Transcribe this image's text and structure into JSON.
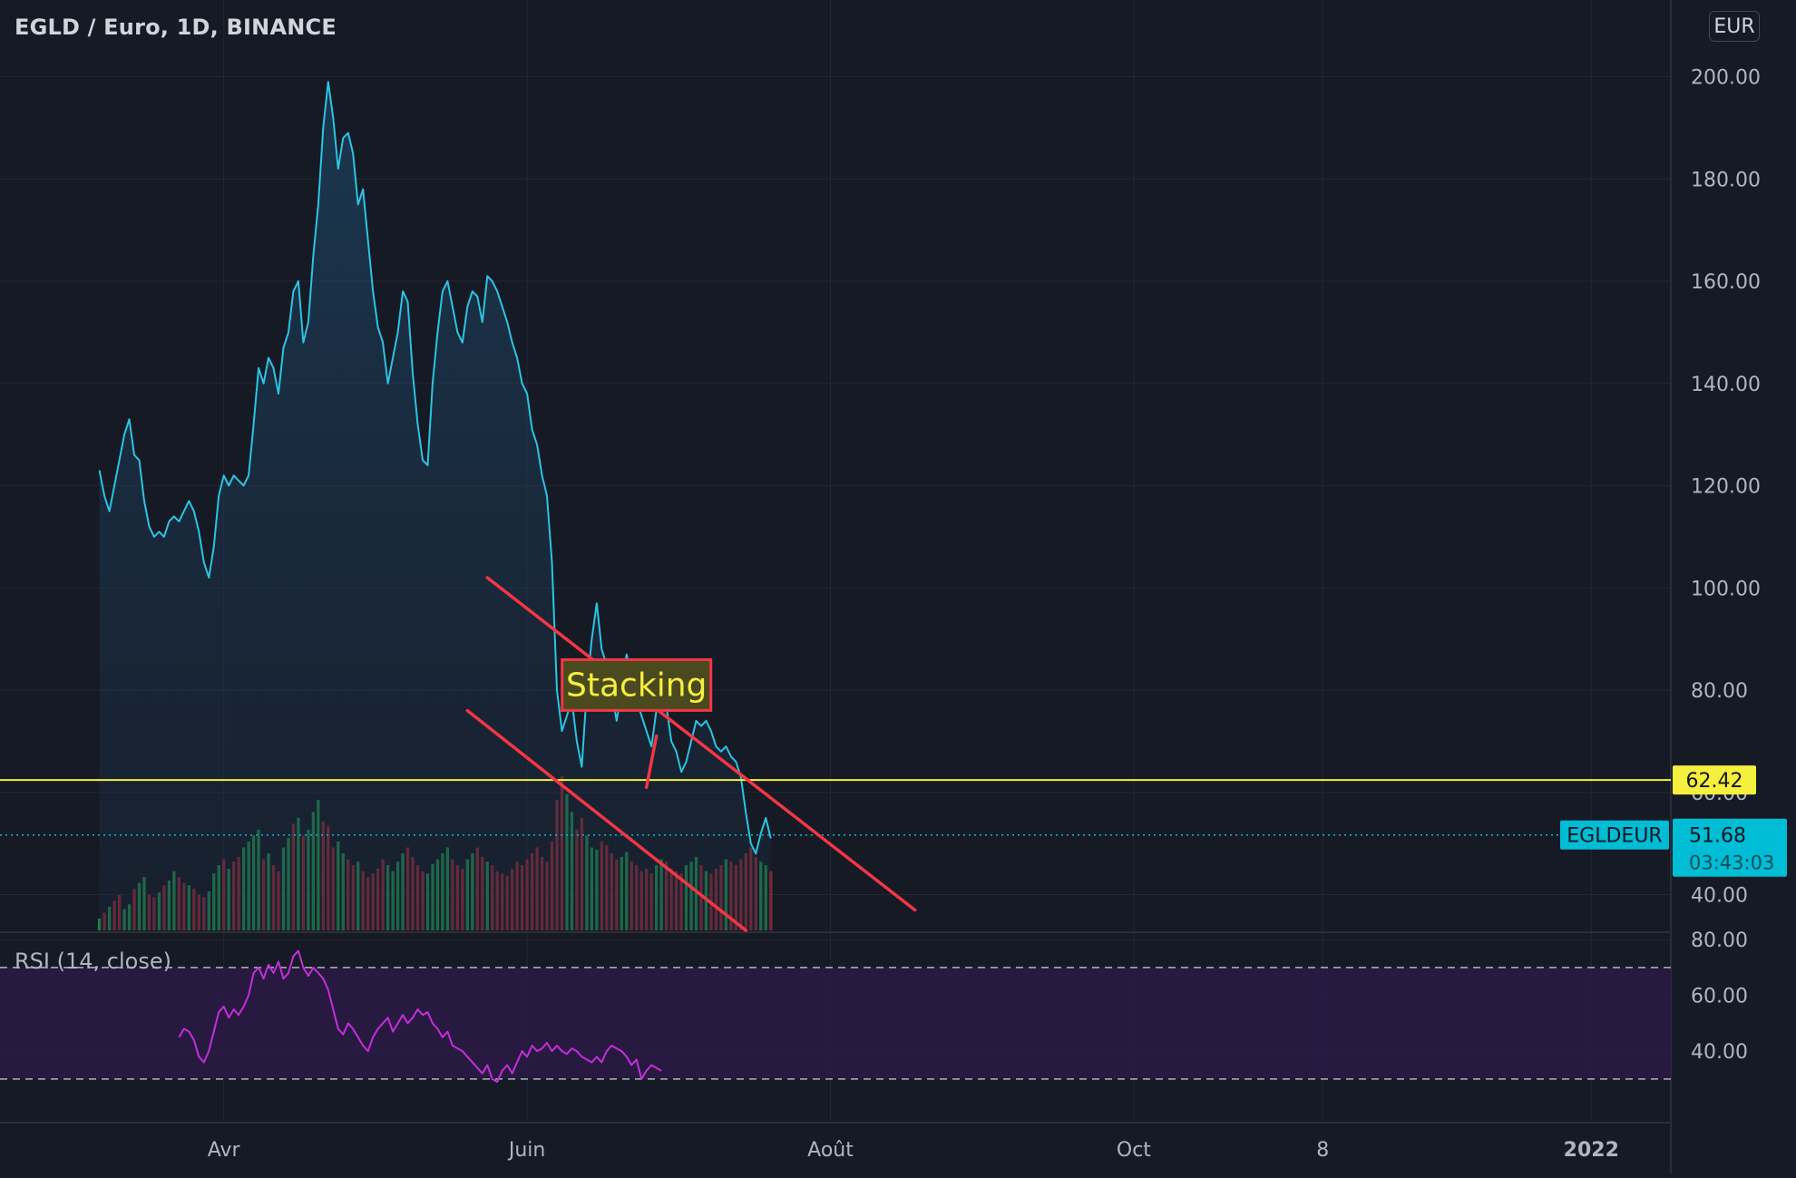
{
  "header": {
    "title": "EGLD / Euro, 1D, BINANCE",
    "currency": "EUR"
  },
  "colors": {
    "background": "#161a25",
    "grid": "#232733",
    "price_line": "#2bc4e2",
    "trendline": "#f23645",
    "support_line": "#f5ef3d",
    "rsi_line": "#c42edb",
    "rsi_band": "#2a1a45",
    "volume_up": "#1f8a4a",
    "volume_down": "#8c2a35",
    "axis_text": "#b2b5be",
    "ticker_bg": "#00bcd4"
  },
  "chart_data": [
    {
      "type": "line",
      "panel": "price",
      "ylim": [
        33,
        215
      ],
      "xlim": [
        "2021-02-15",
        "2022-01-17"
      ],
      "yticks": [
        "200.00",
        "180.00",
        "160.00",
        "140.00",
        "120.00",
        "100.00",
        "80.00",
        "60.00",
        "40.00"
      ],
      "xticks": [
        {
          "label": "Avr",
          "date": "2021-04-01"
        },
        {
          "label": "Juin",
          "date": "2021-06-01"
        },
        {
          "label": "Août",
          "date": "2021-08-01"
        },
        {
          "label": "Oct",
          "date": "2021-10-01"
        },
        {
          "label": "8",
          "date": "2021-11-08"
        },
        {
          "label": "2022",
          "date": "2022-01-01"
        }
      ],
      "series": [
        {
          "style": "area",
          "x_start": "2021-03-07",
          "values": [
            123,
            118,
            115,
            120,
            125,
            130,
            133,
            126,
            125,
            117,
            112,
            110,
            111,
            110,
            113,
            114,
            113,
            115,
            117,
            115,
            111,
            105,
            102,
            108,
            118,
            122,
            120,
            122,
            121,
            120,
            122,
            132,
            143,
            140,
            145,
            143,
            138,
            147,
            150,
            158,
            160,
            148,
            152,
            165,
            175,
            190,
            199,
            192,
            182,
            188,
            189,
            185,
            175,
            178,
            168,
            158,
            151,
            148,
            140,
            145,
            150,
            158,
            156,
            142,
            132,
            125,
            124,
            140,
            150,
            158,
            160,
            155,
            150,
            148,
            155,
            158,
            157,
            152,
            161,
            160,
            158,
            155,
            152,
            148,
            145,
            140,
            138,
            131,
            128,
            122,
            118,
            105,
            80,
            72,
            75,
            78,
            70,
            65,
            80,
            90,
            97,
            88,
            85,
            80,
            74,
            80,
            87,
            82,
            78,
            75,
            72,
            69,
            76,
            82,
            77,
            70,
            68,
            64,
            66,
            70,
            74,
            73,
            74,
            72,
            69,
            68,
            69,
            67,
            66,
            63,
            56,
            50,
            48,
            52,
            55,
            51
          ]
        }
      ],
      "horizontal_lines": [
        {
          "value": 62.42,
          "label": "62.42",
          "style": "solid"
        },
        {
          "value": 51.68,
          "label": "51.68",
          "style": "dotted",
          "ticker": "EGLDEUR",
          "countdown": "03:43:03"
        }
      ],
      "trendlines": [
        {
          "points": [
            [
              "2021-05-24",
              102
            ],
            [
              "2021-08-18",
              37
            ]
          ]
        },
        {
          "points": [
            [
              "2021-05-20",
              76
            ],
            [
              "2021-07-15",
              33
            ]
          ]
        },
        {
          "points": [
            [
              "2021-06-27",
              71
            ],
            [
              "2021-06-25",
              61
            ]
          ]
        }
      ],
      "annotations": [
        {
          "text": "Stacking",
          "date": "2021-06-23",
          "value": 81
        }
      ],
      "volume": {
        "x_start": "2021-03-07",
        "values": [
          10,
          15,
          20,
          25,
          30,
          18,
          22,
          35,
          40,
          45,
          30,
          28,
          32,
          38,
          42,
          50,
          45,
          40,
          38,
          35,
          30,
          28,
          33,
          48,
          55,
          60,
          52,
          58,
          62,
          70,
          75,
          80,
          85,
          60,
          65,
          55,
          50,
          70,
          78,
          90,
          95,
          80,
          85,
          100,
          110,
          92,
          88,
          70,
          75,
          65,
          60,
          55,
          58,
          50,
          45,
          48,
          52,
          60,
          55,
          50,
          58,
          65,
          70,
          62,
          55,
          50,
          48,
          56,
          60,
          65,
          70,
          60,
          55,
          52,
          60,
          65,
          70,
          62,
          58,
          55,
          50,
          48,
          46,
          52,
          58,
          55,
          60,
          65,
          70,
          62,
          58,
          75,
          110,
          130,
          115,
          100,
          85,
          95,
          80,
          70,
          68,
          75,
          72,
          65,
          60,
          62,
          66,
          58,
          55,
          50,
          52,
          48,
          55,
          60,
          58,
          52,
          50,
          48,
          55,
          58,
          62,
          55,
          50,
          48,
          52,
          55,
          60,
          58,
          55,
          60,
          65,
          70,
          62,
          58,
          55,
          50
        ],
        "down": [
          0,
          1,
          0,
          1,
          1,
          0,
          0,
          1,
          0,
          0,
          1,
          1,
          0,
          1,
          0,
          0,
          1,
          1,
          0,
          1,
          1,
          1,
          0,
          0,
          0,
          1,
          0,
          1,
          1,
          0,
          0,
          0,
          0,
          1,
          0,
          1,
          1,
          0,
          0,
          1,
          0,
          1,
          0,
          0,
          0,
          1,
          1,
          1,
          0,
          0,
          1,
          1,
          0,
          1,
          1,
          1,
          1,
          1,
          0,
          0,
          0,
          0,
          1,
          1,
          1,
          1,
          0,
          0,
          0,
          0,
          0,
          1,
          1,
          1,
          0,
          0,
          1,
          1,
          0,
          1,
          1,
          1,
          1,
          1,
          1,
          1,
          1,
          1,
          1,
          1,
          1,
          1,
          1,
          1,
          0,
          0,
          1,
          1,
          0,
          0,
          0,
          1,
          1,
          1,
          1,
          0,
          0,
          1,
          1,
          1,
          1,
          1,
          0,
          0,
          1,
          1,
          1,
          1,
          0,
          0,
          0,
          1,
          0,
          1,
          1,
          1,
          0,
          1,
          1,
          1,
          1,
          1,
          1,
          0,
          0,
          1
        ]
      }
    },
    {
      "type": "line",
      "panel": "rsi",
      "title": "RSI (14, close)",
      "ylim": [
        15,
        82
      ],
      "yticks": [
        "80.00",
        "60.00",
        "40.00"
      ],
      "band": [
        30,
        70
      ],
      "series": [
        {
          "style": "line",
          "x_start": "2021-03-23",
          "values": [
            45,
            48,
            47,
            44,
            38,
            36,
            40,
            47,
            54,
            56,
            52,
            55,
            53,
            56,
            60,
            68,
            70,
            66,
            71,
            68,
            72,
            66,
            68,
            74,
            76,
            70,
            67,
            70,
            68,
            66,
            62,
            55,
            48,
            46,
            50,
            48,
            45,
            42,
            40,
            45,
            48,
            50,
            52,
            47,
            50,
            53,
            50,
            52,
            55,
            53,
            54,
            50,
            48,
            45,
            47,
            42,
            41,
            40,
            38,
            36,
            34,
            32,
            35,
            30,
            29,
            33,
            35,
            32,
            36,
            40,
            38,
            42,
            40,
            41,
            43,
            40,
            42,
            40,
            39,
            41,
            40,
            38,
            37,
            36,
            38,
            36,
            40,
            42,
            41,
            40,
            38,
            35,
            37,
            30,
            33,
            35,
            34,
            33
          ]
        }
      ]
    }
  ]
}
